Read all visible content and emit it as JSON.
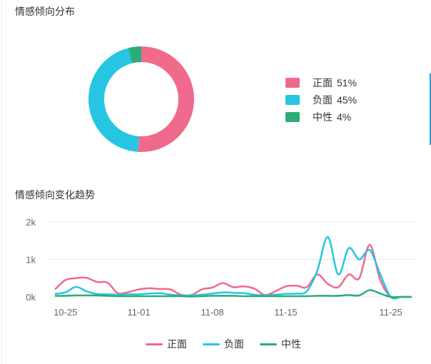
{
  "section1_title": "情感倾向分布",
  "section2_title": "情感倾向变化趋势",
  "colors": {
    "positive": "#f06a8b",
    "negative": "#26c6e2",
    "neutral": "#2cad78",
    "grid": "#e8e8e8",
    "axis": "#666666"
  },
  "chart_data": [
    {
      "type": "pie",
      "donut": true,
      "title": "情感倾向分布",
      "slices": [
        {
          "name": "正面",
          "percent_label": "51%",
          "value": 51
        },
        {
          "name": "负面",
          "percent_label": "45%",
          "value": 45
        },
        {
          "name": "中性",
          "percent_label": "4%",
          "value": 4
        }
      ],
      "legend_placement": "right"
    },
    {
      "type": "line",
      "title": "情感倾向变化趋势",
      "x_tick_labels": [
        "10-25",
        "11-01",
        "11-08",
        "11-15",
        "11-25"
      ],
      "y_tick_labels": [
        "0k",
        "1k",
        "2k"
      ],
      "ylim": [
        0,
        2000
      ],
      "grid": true,
      "legend_placement": "bottom",
      "x": [
        "10-24",
        "10-25",
        "10-26",
        "10-27",
        "10-28",
        "10-29",
        "10-30",
        "10-31",
        "11-01",
        "11-02",
        "11-03",
        "11-04",
        "11-05",
        "11-06",
        "11-07",
        "11-08",
        "11-09",
        "11-10",
        "11-11",
        "11-12",
        "11-13",
        "11-14",
        "11-15",
        "11-16",
        "11-17",
        "11-18",
        "11-19",
        "11-20",
        "11-21",
        "11-22",
        "11-23",
        "11-24",
        "11-25",
        "11-26",
        "11-27"
      ],
      "series": [
        {
          "name": "正面",
          "values": [
            200,
            450,
            500,
            510,
            400,
            380,
            100,
            130,
            200,
            230,
            210,
            200,
            60,
            50,
            200,
            250,
            370,
            260,
            280,
            220,
            50,
            150,
            280,
            300,
            260,
            600,
            350,
            260,
            600,
            500,
            1390,
            450,
            0,
            0,
            0
          ]
        },
        {
          "name": "负面",
          "values": [
            80,
            120,
            270,
            150,
            80,
            70,
            60,
            70,
            70,
            90,
            100,
            60,
            40,
            40,
            60,
            90,
            120,
            110,
            100,
            60,
            40,
            60,
            80,
            90,
            150,
            700,
            1600,
            600,
            1300,
            1000,
            1250,
            600,
            0,
            0,
            0
          ]
        },
        {
          "name": "中性",
          "values": [
            30,
            30,
            40,
            40,
            40,
            30,
            20,
            20,
            20,
            20,
            20,
            20,
            20,
            10,
            20,
            30,
            30,
            30,
            20,
            20,
            20,
            20,
            20,
            20,
            20,
            30,
            30,
            30,
            50,
            40,
            180,
            90,
            0,
            0,
            0
          ]
        }
      ]
    }
  ]
}
